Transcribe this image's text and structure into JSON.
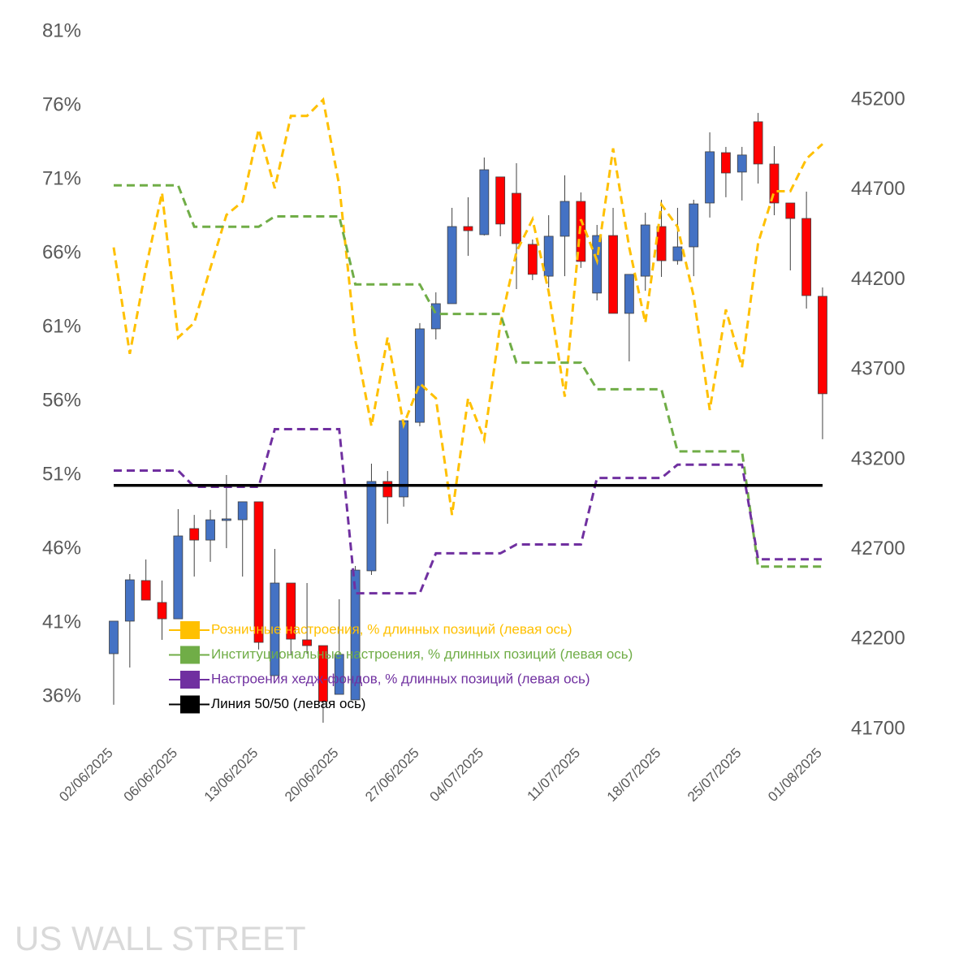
{
  "chart_data": {
    "type": "candlestick",
    "watermark": "US WALL STREET",
    "categories": [
      "02/06/2025",
      null,
      null,
      null,
      "06/06/2025",
      null,
      null,
      null,
      null,
      "13/06/2025",
      null,
      null,
      null,
      null,
      "20/06/2025",
      null,
      null,
      null,
      null,
      "27/06/2025",
      null,
      null,
      null,
      "04/07/2025",
      null,
      null,
      null,
      null,
      null,
      "11/07/2025",
      null,
      null,
      null,
      null,
      "18/07/2025",
      null,
      null,
      null,
      null,
      "25/07/2025",
      null,
      null,
      null,
      null,
      "01/08/2025"
    ],
    "ylim": [
      33.8,
      81
    ],
    "yticks": [
      {
        "value": 36,
        "label": "36%"
      },
      {
        "value": 41,
        "label": "41%"
      },
      {
        "value": 46,
        "label": "46%"
      },
      {
        "value": 51,
        "label": "51%"
      },
      {
        "value": 56,
        "label": "56%"
      },
      {
        "value": 61,
        "label": "61%"
      },
      {
        "value": 66,
        "label": "66%"
      },
      {
        "value": 71,
        "label": "71%"
      },
      {
        "value": 76,
        "label": "76%"
      },
      {
        "value": 81,
        "label": "81%"
      }
    ],
    "y2lim": [
      41700,
      45580
    ],
    "y2ticks": [
      41700,
      42200,
      42700,
      43200,
      43700,
      44200,
      44700,
      45200
    ],
    "candles": {
      "axis": "y2",
      "up_color": "#4472c4",
      "down_color": "#ff0000",
      "open": [
        42120,
        42301,
        42527,
        42405,
        42314,
        42816,
        42752,
        42861,
        42865,
        42965,
        41998,
        42513,
        42197,
        42165,
        41894,
        41863,
        42581,
        43078,
        42992,
        43407,
        43927,
        44067,
        44496,
        44451,
        44772,
        44681,
        44397,
        44220,
        44442,
        44636,
        44126,
        44446,
        44013,
        44220,
        44496,
        44306,
        44383,
        44627,
        44907,
        44799,
        45079,
        44844,
        44627,
        44541,
        44108
      ],
      "high": [
        42301,
        42563,
        42644,
        42527,
        42924,
        42892,
        42920,
        43114,
        42965,
        42965,
        42703,
        42513,
        42513,
        42165,
        42423,
        42608,
        43177,
        43136,
        43416,
        43959,
        44130,
        44600,
        44659,
        44880,
        44772,
        44848,
        44424,
        44559,
        44781,
        44686,
        44505,
        44600,
        44230,
        44573,
        44645,
        44600,
        44645,
        45020,
        44939,
        44939,
        45128,
        44943,
        44627,
        44690,
        44157
      ],
      "low": [
        41836,
        42043,
        42418,
        42197,
        42314,
        42549,
        42631,
        42707,
        42549,
        42143,
        41998,
        42116,
        42120,
        41736,
        41894,
        41863,
        42558,
        42843,
        42938,
        43385,
        43868,
        44067,
        44333,
        44446,
        44442,
        44148,
        44198,
        44157,
        44220,
        44266,
        44085,
        44013,
        43746,
        44139,
        44216,
        44284,
        44220,
        44546,
        44659,
        44641,
        44735,
        44559,
        44252,
        44040,
        43313
      ],
      "close": [
        42301,
        42531,
        42418,
        42314,
        42775,
        42752,
        42865,
        42870,
        42965,
        42183,
        42513,
        42201,
        42165,
        41854,
        42116,
        42585,
        43078,
        42992,
        43416,
        43927,
        44067,
        44496,
        44473,
        44812,
        44510,
        44401,
        44230,
        44442,
        44636,
        44302,
        44446,
        44013,
        44230,
        44505,
        44306,
        44383,
        44622,
        44912,
        44794,
        44894,
        44844,
        44627,
        44541,
        44112,
        43566
      ]
    },
    "series": [
      {
        "name": "Розничные настроения, % длинных позиций (левая ось)",
        "color": "#ffc000",
        "axis": "y",
        "dashed": true,
        "values": [
          66.4,
          59.2,
          65.0,
          70.1,
          60.3,
          61.3,
          65.0,
          68.6,
          69.5,
          74.4,
          70.4,
          75.3,
          75.3,
          76.4,
          70.6,
          60.1,
          54.3,
          60.3,
          54.4,
          57.2,
          56.2,
          48.3,
          56.2,
          53.4,
          61.2,
          66.1,
          68.3,
          63.4,
          56.3,
          68.3,
          65.5,
          73.1,
          66.4,
          61.3,
          69.3,
          67.8,
          63.1,
          55.4,
          62.2,
          58.3,
          66.7,
          70.2,
          70.2,
          72.4,
          73.4
        ]
      },
      {
        "name": "Институциональные настроения, % длинных позиций (левая ось)",
        "color": "#70ad47",
        "axis": "y",
        "dashed": true,
        "values": [
          70.6,
          70.6,
          70.6,
          70.6,
          70.6,
          67.8,
          67.8,
          67.8,
          67.8,
          67.8,
          68.5,
          68.5,
          68.5,
          68.5,
          68.5,
          63.9,
          63.9,
          63.9,
          63.9,
          63.9,
          61.9,
          61.9,
          61.9,
          61.9,
          61.9,
          58.6,
          58.6,
          58.6,
          58.6,
          58.6,
          56.8,
          56.8,
          56.8,
          56.8,
          56.8,
          52.6,
          52.6,
          52.6,
          52.6,
          52.6,
          44.8,
          44.8,
          44.8,
          44.8,
          44.8
        ]
      },
      {
        "name": "Настроения хедж-фондов, % длинных позиций (левая ось)",
        "color": "#7030a0",
        "axis": "y",
        "dashed": true,
        "values": [
          51.3,
          51.3,
          51.3,
          51.3,
          51.3,
          50.2,
          50.2,
          50.2,
          50.2,
          50.2,
          54.1,
          54.1,
          54.1,
          54.1,
          54.1,
          43.0,
          43.0,
          43.0,
          43.0,
          43.0,
          45.7,
          45.7,
          45.7,
          45.7,
          45.7,
          46.3,
          46.3,
          46.3,
          46.3,
          46.3,
          50.8,
          50.8,
          50.8,
          50.8,
          50.8,
          51.7,
          51.7,
          51.7,
          51.7,
          51.7,
          45.3,
          45.3,
          45.3,
          45.3,
          45.3
        ]
      },
      {
        "name": "Линия 50/50 (левая ось)",
        "color": "#000000",
        "axis": "y",
        "dashed": false,
        "values": [
          50.3,
          50.3,
          50.3,
          50.3,
          50.3,
          50.3,
          50.3,
          50.3,
          50.3,
          50.3,
          50.3,
          50.3,
          50.3,
          50.3,
          50.3,
          50.3,
          50.3,
          50.3,
          50.3,
          50.3,
          50.3,
          50.3,
          50.3,
          50.3,
          50.3,
          50.3,
          50.3,
          50.3,
          50.3,
          50.3,
          50.3,
          50.3,
          50.3,
          50.3,
          50.3,
          50.3,
          50.3,
          50.3,
          50.3,
          50.3,
          50.3,
          50.3,
          50.3,
          50.3,
          50.3
        ]
      }
    ],
    "legend": "lower-left"
  }
}
